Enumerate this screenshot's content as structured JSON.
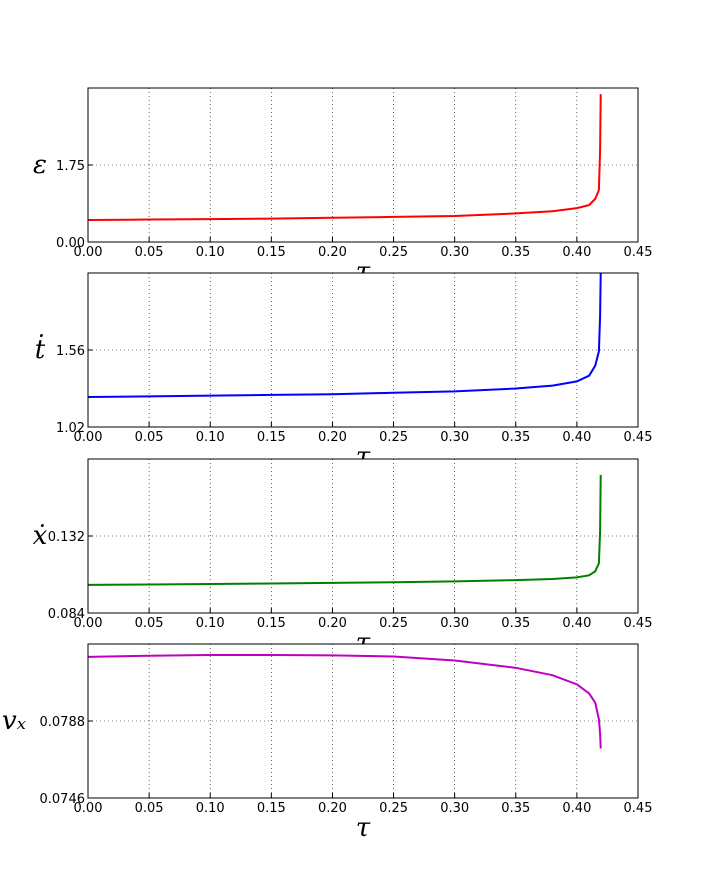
{
  "chart_data": [
    {
      "type": "line",
      "y_label": "ε",
      "x_label": "τ",
      "color": "#ff0000",
      "grid": true,
      "x": [
        0,
        0.05,
        0.1,
        0.15,
        0.2,
        0.25,
        0.3,
        0.35,
        0.38,
        0.4,
        0.41,
        0.415,
        0.418,
        0.419,
        0.4195
      ],
      "values": [
        0.5,
        0.51,
        0.52,
        0.53,
        0.55,
        0.57,
        0.59,
        0.65,
        0.7,
        0.77,
        0.84,
        0.98,
        1.18,
        2.09,
        3.36
      ],
      "xlim": [
        0,
        0.45
      ],
      "ylim": [
        0,
        3.5
      ],
      "xticks": [
        {
          "value": 0,
          "label": "0.00"
        },
        {
          "value": 0.05,
          "label": "0.05"
        },
        {
          "value": 0.1,
          "label": "0.10"
        },
        {
          "value": 0.15,
          "label": "0.15"
        },
        {
          "value": 0.2,
          "label": "0.20"
        },
        {
          "value": 0.25,
          "label": "0.25"
        },
        {
          "value": 0.3,
          "label": "0.30"
        },
        {
          "value": 0.35,
          "label": "0.35"
        },
        {
          "value": 0.4,
          "label": "0.40"
        },
        {
          "value": 0.45,
          "label": "0.45"
        }
      ],
      "yticks": [
        {
          "value": 0,
          "label": "0.00"
        },
        1.75
      ]
    },
    {
      "type": "line",
      "y_label": "ṫ",
      "x_label": "τ",
      "color": "#0000ff",
      "grid": true,
      "x": [
        0,
        0.05,
        0.1,
        0.15,
        0.2,
        0.25,
        0.3,
        0.35,
        0.38,
        0.4,
        0.41,
        0.415,
        0.418,
        0.419,
        0.4195
      ],
      "values": [
        1.23,
        1.235,
        1.24,
        1.245,
        1.25,
        1.26,
        1.27,
        1.29,
        1.31,
        1.34,
        1.38,
        1.45,
        1.55,
        1.8,
        2.1
      ],
      "xlim": [
        0,
        0.45
      ],
      "ylim": [
        1.02,
        2.1
      ],
      "xticks": [
        {
          "value": 0,
          "label": "0.00"
        },
        {
          "value": 0.05,
          "label": "0.05"
        },
        {
          "value": 0.1,
          "label": "0.10"
        },
        {
          "value": 0.15,
          "label": "0.15"
        },
        {
          "value": 0.2,
          "label": "0.20"
        },
        {
          "value": 0.25,
          "label": "0.25"
        },
        {
          "value": 0.3,
          "label": "0.30"
        },
        {
          "value": 0.35,
          "label": "0.35"
        },
        {
          "value": 0.4,
          "label": "0.40"
        },
        {
          "value": 0.45,
          "label": "0.45"
        }
      ],
      "yticks": [
        1.02,
        1.56
      ]
    },
    {
      "type": "line",
      "y_label": "ẋ",
      "x_label": "τ",
      "color": "#008000",
      "grid": true,
      "x": [
        0,
        0.05,
        0.1,
        0.15,
        0.2,
        0.25,
        0.3,
        0.35,
        0.38,
        0.4,
        0.41,
        0.415,
        0.418,
        0.419,
        0.4195
      ],
      "values": [
        0.1015,
        0.1018,
        0.1021,
        0.1024,
        0.1028,
        0.1032,
        0.1037,
        0.1045,
        0.1052,
        0.1062,
        0.1075,
        0.11,
        0.115,
        0.135,
        0.17
      ],
      "xlim": [
        0,
        0.45
      ],
      "ylim": [
        0.084,
        0.18
      ],
      "xticks": [
        {
          "value": 0,
          "label": "0.00"
        },
        {
          "value": 0.05,
          "label": "0.05"
        },
        {
          "value": 0.1,
          "label": "0.10"
        },
        {
          "value": 0.15,
          "label": "0.15"
        },
        {
          "value": 0.2,
          "label": "0.20"
        },
        {
          "value": 0.25,
          "label": "0.25"
        },
        {
          "value": 0.3,
          "label": "0.30"
        },
        {
          "value": 0.35,
          "label": "0.35"
        },
        {
          "value": 0.4,
          "label": "0.40"
        },
        {
          "value": 0.45,
          "label": "0.45"
        }
      ],
      "yticks": [
        0.084,
        0.132
      ]
    },
    {
      "type": "line",
      "y_label": "vₓ",
      "x_label": "τ",
      "color": "#bf00bf",
      "grid": true,
      "x": [
        0,
        0.05,
        0.1,
        0.15,
        0.2,
        0.25,
        0.3,
        0.35,
        0.38,
        0.4,
        0.41,
        0.415,
        0.418,
        0.419,
        0.4195
      ],
      "values": [
        0.0823,
        0.08236,
        0.0824,
        0.0824,
        0.08238,
        0.08232,
        0.0821,
        0.0817,
        0.0813,
        0.0808,
        0.0803,
        0.0798,
        0.0789,
        0.0781,
        0.0773
      ],
      "xlim": [
        0,
        0.45
      ],
      "ylim": [
        0.0746,
        0.083
      ],
      "xticks": [
        {
          "value": 0,
          "label": "0.00"
        },
        {
          "value": 0.05,
          "label": "0.05"
        },
        {
          "value": 0.1,
          "label": "0.10"
        },
        {
          "value": 0.15,
          "label": "0.15"
        },
        {
          "value": 0.2,
          "label": "0.20"
        },
        {
          "value": 0.25,
          "label": "0.25"
        },
        {
          "value": 0.3,
          "label": "0.30"
        },
        {
          "value": 0.35,
          "label": "0.35"
        },
        {
          "value": 0.4,
          "label": "0.40"
        },
        {
          "value": 0.45,
          "label": "0.45"
        }
      ],
      "yticks": [
        0.0746,
        0.0788
      ]
    }
  ]
}
